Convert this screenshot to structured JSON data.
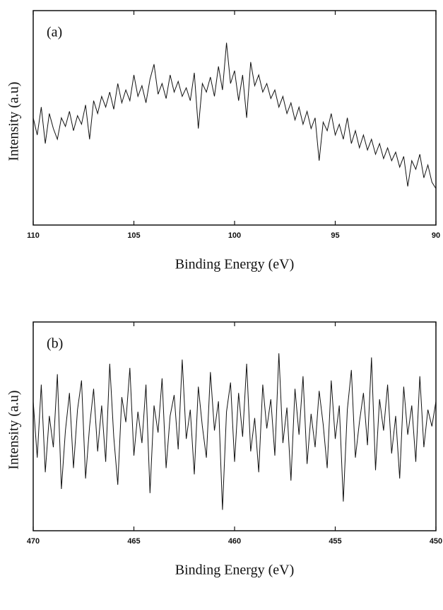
{
  "chart_data": [
    {
      "type": "line",
      "annotation": "(a)",
      "x_label": "Binding Energy (eV)",
      "y_label": "Intensity (a.u)",
      "color": "#111111",
      "xlim": [
        110,
        90
      ],
      "xticks": [
        110,
        105,
        100,
        95,
        90
      ],
      "ylim": [
        0,
        100
      ],
      "x": [
        110,
        109.8,
        109.6,
        109.4,
        109.2,
        109,
        108.8,
        108.6,
        108.4,
        108.2,
        108,
        107.8,
        107.6,
        107.4,
        107.2,
        107,
        106.8,
        106.6,
        106.4,
        106.2,
        106,
        105.8,
        105.6,
        105.4,
        105.2,
        105,
        104.8,
        104.6,
        104.4,
        104.2,
        104,
        103.8,
        103.6,
        103.4,
        103.2,
        103,
        102.8,
        102.6,
        102.4,
        102.2,
        102,
        101.8,
        101.6,
        101.4,
        101.2,
        101,
        100.8,
        100.6,
        100.4,
        100.2,
        100,
        99.8,
        99.6,
        99.4,
        99.2,
        99,
        98.8,
        98.6,
        98.4,
        98.2,
        98,
        97.8,
        97.6,
        97.4,
        97.2,
        97,
        96.8,
        96.6,
        96.4,
        96.2,
        96,
        95.8,
        95.6,
        95.4,
        95.2,
        95,
        94.8,
        94.6,
        94.4,
        94.2,
        94,
        93.8,
        93.6,
        93.4,
        93.2,
        93,
        92.8,
        92.6,
        92.4,
        92.2,
        92,
        91.8,
        91.6,
        91.4,
        91.2,
        91,
        90.8,
        90.6,
        90.4,
        90.2,
        90
      ],
      "values": [
        50,
        42,
        55,
        38,
        52,
        45,
        40,
        50,
        46,
        53,
        44,
        51,
        47,
        56,
        40,
        58,
        52,
        60,
        55,
        62,
        54,
        66,
        57,
        63,
        58,
        70,
        60,
        65,
        57,
        68,
        75,
        61,
        66,
        59,
        70,
        62,
        67,
        60,
        64,
        58,
        71,
        45,
        66,
        62,
        69,
        60,
        74,
        63,
        85,
        66,
        72,
        58,
        70,
        50,
        76,
        65,
        70,
        62,
        66,
        59,
        63,
        55,
        60,
        52,
        57,
        49,
        55,
        47,
        53,
        45,
        50,
        30,
        48,
        44,
        52,
        42,
        47,
        40,
        50,
        38,
        44,
        36,
        42,
        35,
        40,
        33,
        38,
        31,
        36,
        30,
        34,
        27,
        32,
        18,
        30,
        26,
        33,
        22,
        28,
        20,
        17
      ]
    },
    {
      "type": "line",
      "annotation": "(b)",
      "x_label": "Binding Energy (eV)",
      "y_label": "Intensity (a.u)",
      "color": "#111111",
      "xlim": [
        470,
        450
      ],
      "xticks": [
        470,
        465,
        460,
        455,
        450
      ],
      "ylim": [
        0,
        100
      ],
      "x": [
        470,
        469.8,
        469.6,
        469.4,
        469.2,
        469,
        468.8,
        468.6,
        468.4,
        468.2,
        468,
        467.8,
        467.6,
        467.4,
        467.2,
        467,
        466.8,
        466.6,
        466.4,
        466.2,
        466,
        465.8,
        465.6,
        465.4,
        465.2,
        465,
        464.8,
        464.6,
        464.4,
        464.2,
        464,
        463.8,
        463.6,
        463.4,
        463.2,
        463,
        462.8,
        462.6,
        462.4,
        462.2,
        462,
        461.8,
        461.6,
        461.4,
        461.2,
        461,
        460.8,
        460.6,
        460.4,
        460.2,
        460,
        459.8,
        459.6,
        459.4,
        459.2,
        459,
        458.8,
        458.6,
        458.4,
        458.2,
        458,
        457.8,
        457.6,
        457.4,
        457.2,
        457,
        456.8,
        456.6,
        456.4,
        456.2,
        456,
        455.8,
        455.6,
        455.4,
        455.2,
        455,
        454.8,
        454.6,
        454.4,
        454.2,
        454,
        453.8,
        453.6,
        453.4,
        453.2,
        453,
        452.8,
        452.6,
        452.4,
        452.2,
        452,
        451.8,
        451.6,
        451.4,
        451.2,
        451,
        450.8,
        450.6,
        450.4,
        450.2,
        450
      ],
      "values": [
        62,
        35,
        70,
        28,
        55,
        40,
        75,
        20,
        48,
        66,
        30,
        58,
        72,
        25,
        50,
        68,
        38,
        60,
        33,
        80,
        45,
        22,
        64,
        52,
        78,
        36,
        57,
        42,
        70,
        18,
        60,
        47,
        73,
        30,
        55,
        65,
        39,
        82,
        44,
        58,
        27,
        69,
        50,
        35,
        76,
        48,
        62,
        10,
        57,
        71,
        33,
        66,
        45,
        80,
        38,
        54,
        28,
        70,
        49,
        63,
        36,
        85,
        42,
        59,
        24,
        68,
        46,
        74,
        32,
        56,
        40,
        67,
        51,
        30,
        72,
        44,
        60,
        14,
        58,
        77,
        35,
        52,
        66,
        41,
        83,
        29,
        63,
        48,
        70,
        37,
        55,
        25,
        69,
        46,
        60,
        33,
        74,
        40,
        58,
        50,
        62
      ]
    }
  ]
}
